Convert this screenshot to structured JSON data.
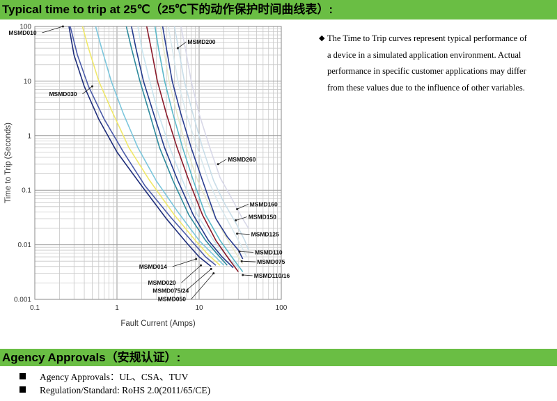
{
  "header": {
    "title": "Typical time to trip at 25℃（25℃下的动作保护时间曲线表）:"
  },
  "note": {
    "bullet": "◆",
    "text": "The Time to Trip curves represent typical performance of a device in a simulated application environment. Actual performance in specific customer applications may differ from these values due to the influence of other variables."
  },
  "agency": {
    "title": "Agency Approvals（安规认证）:",
    "items": [
      "Agency Approvals：UL、CSA、TUV",
      "Regulation/Standard: RoHS 2.0(2011/65/CE)"
    ]
  },
  "chart_data": {
    "type": "line",
    "xlabel": "Fault Current  (Amps)",
    "ylabel": "Time to Trip  (Seconds)",
    "xscale": "log",
    "yscale": "log",
    "xlim": [
      0.1,
      100
    ],
    "ylim": [
      0.001,
      100
    ],
    "grid": true,
    "x_ticks": [
      "0.1",
      "1",
      "10",
      "100"
    ],
    "y_ticks": [
      "100",
      "10",
      "1",
      "0.1",
      "0.01",
      "0.001"
    ],
    "series": [
      {
        "name": "MSMD010",
        "color": "#1f2e7a",
        "label_at": [
          0.22,
          100
        ],
        "points": [
          [
            0.26,
            100
          ],
          [
            0.3,
            30
          ],
          [
            0.4,
            8
          ],
          [
            0.6,
            2
          ],
          [
            1,
            0.5
          ],
          [
            2,
            0.12
          ],
          [
            4,
            0.03
          ],
          [
            7,
            0.011
          ],
          [
            10,
            0.006
          ],
          [
            14,
            0.004
          ]
        ]
      },
      {
        "name": "MSMD014",
        "color": "#4a5aa8",
        "label_at": [
          9.2,
          0.0055
        ],
        "points": [
          [
            0.27,
            100
          ],
          [
            0.33,
            30
          ],
          [
            0.45,
            8
          ],
          [
            0.7,
            2
          ],
          [
            1.2,
            0.5
          ],
          [
            2.2,
            0.12
          ],
          [
            4.5,
            0.032
          ],
          [
            8,
            0.012
          ],
          [
            12,
            0.006
          ],
          [
            16,
            0.0042
          ]
        ]
      },
      {
        "name": "MSMD020",
        "color": "#f0e86a",
        "label_at": [
          10.5,
          0.0042
        ],
        "points": [
          [
            0.38,
            100
          ],
          [
            0.45,
            40
          ],
          [
            0.6,
            10
          ],
          [
            0.9,
            2.5
          ],
          [
            1.4,
            0.6
          ],
          [
            2.5,
            0.15
          ],
          [
            5,
            0.035
          ],
          [
            9,
            0.012
          ],
          [
            13,
            0.0065
          ],
          [
            18,
            0.0042
          ]
        ]
      },
      {
        "name": "MSMD030",
        "color": "#7cc6dc",
        "label_at": [
          0.5,
          8
        ],
        "points": [
          [
            0.55,
            100
          ],
          [
            0.65,
            40
          ],
          [
            0.85,
            10
          ],
          [
            1.2,
            2.5
          ],
          [
            1.8,
            0.6
          ],
          [
            3,
            0.15
          ],
          [
            5.5,
            0.04
          ],
          [
            10,
            0.012
          ],
          [
            15,
            0.0065
          ],
          [
            20,
            0.0042
          ]
        ]
      },
      {
        "name": "MSMD050",
        "color": "#2e8a9c",
        "label_at": [
          15,
          0.003
        ],
        "points": [
          [
            1.3,
            100
          ],
          [
            1.5,
            40
          ],
          [
            1.9,
            10
          ],
          [
            2.5,
            2.5
          ],
          [
            3.3,
            0.6
          ],
          [
            4.8,
            0.15
          ],
          [
            7.5,
            0.035
          ],
          [
            12,
            0.012
          ],
          [
            17,
            0.0065
          ],
          [
            22,
            0.0042
          ]
        ]
      },
      {
        "name": "MSMD075/24",
        "color": "#223a8c",
        "label_at": [
          14,
          0.0036
        ],
        "points": [
          [
            1.5,
            100
          ],
          [
            1.7,
            40
          ],
          [
            2.1,
            10
          ],
          [
            2.8,
            2.5
          ],
          [
            3.8,
            0.6
          ],
          [
            5.5,
            0.15
          ],
          [
            8.5,
            0.035
          ],
          [
            13,
            0.012
          ],
          [
            19,
            0.006
          ],
          [
            26,
            0.0038
          ]
        ]
      },
      {
        "name": "MSMD075",
        "color": "#c8e4ee",
        "label_at": [
          33,
          0.005
        ],
        "points": [
          [
            1.8,
            100
          ],
          [
            2.0,
            40
          ],
          [
            2.5,
            10
          ],
          [
            3.2,
            2.5
          ],
          [
            4.4,
            0.6
          ],
          [
            6.3,
            0.15
          ],
          [
            9.5,
            0.035
          ],
          [
            15,
            0.012
          ],
          [
            22,
            0.006
          ],
          [
            30,
            0.0038
          ]
        ]
      },
      {
        "name": "MSMD110",
        "color": "#8a1a2a",
        "label_at": [
          31,
          0.0075
        ],
        "points": [
          [
            2.3,
            100
          ],
          [
            2.6,
            40
          ],
          [
            3.1,
            10
          ],
          [
            4,
            2.5
          ],
          [
            5.4,
            0.6
          ],
          [
            7.5,
            0.15
          ],
          [
            11,
            0.035
          ],
          [
            16,
            0.012
          ],
          [
            23,
            0.0055
          ],
          [
            30,
            0.0032
          ]
        ]
      },
      {
        "name": "MSMD110/16",
        "color": "#5ab8c8",
        "label_at": [
          34,
          0.0028
        ],
        "points": [
          [
            2.9,
            100
          ],
          [
            3.2,
            40
          ],
          [
            3.8,
            10
          ],
          [
            4.8,
            2.5
          ],
          [
            6.3,
            0.6
          ],
          [
            8.5,
            0.15
          ],
          [
            12,
            0.035
          ],
          [
            18,
            0.012
          ],
          [
            26,
            0.0055
          ],
          [
            34,
            0.0032
          ]
        ]
      },
      {
        "name": "MSMD125",
        "color": "#e8e8c8",
        "label_at": [
          29,
          0.016
        ],
        "points": [
          [
            3.4,
            100
          ],
          [
            3.7,
            40
          ],
          [
            4.3,
            10
          ],
          [
            5.4,
            2.5
          ],
          [
            7,
            0.6
          ],
          [
            9.6,
            0.15
          ],
          [
            14,
            0.045
          ],
          [
            20,
            0.016
          ],
          [
            28,
            0.007
          ],
          [
            34,
            0.0045
          ]
        ]
      },
      {
        "name": "MSMD150",
        "color": "#2a3e90",
        "label_at": [
          28,
          0.028
        ],
        "points": [
          [
            3.6,
            100
          ],
          [
            4,
            40
          ],
          [
            4.7,
            10
          ],
          [
            6,
            2.5
          ],
          [
            8,
            0.6
          ],
          [
            11,
            0.15
          ],
          [
            16,
            0.03
          ],
          [
            22,
            0.014
          ],
          [
            30,
            0.008
          ],
          [
            34,
            0.0055
          ]
        ]
      },
      {
        "name": "MSMD160",
        "color": "#d8e8ee",
        "label_at": [
          29,
          0.045
        ],
        "points": [
          [
            4.2,
            100
          ],
          [
            4.7,
            40
          ],
          [
            5.5,
            10
          ],
          [
            7,
            2.5
          ],
          [
            9.5,
            0.6
          ],
          [
            13,
            0.15
          ],
          [
            18,
            0.05
          ],
          [
            25,
            0.02
          ],
          [
            32,
            0.01
          ],
          [
            38,
            0.006
          ]
        ]
      },
      {
        "name": "MSMD200",
        "color": "#c8dde8",
        "label_at": [
          5.5,
          40
        ],
        "points": [
          [
            5,
            100
          ],
          [
            5.6,
            40
          ],
          [
            6.6,
            10
          ],
          [
            8.4,
            2.5
          ],
          [
            11,
            0.6
          ],
          [
            15,
            0.15
          ],
          [
            20,
            0.06
          ],
          [
            28,
            0.025
          ],
          [
            36,
            0.012
          ],
          [
            40,
            0.008
          ]
        ]
      },
      {
        "name": "MSMD260",
        "color": "#d8d8e8",
        "label_at": [
          17,
          0.3
        ],
        "points": [
          [
            6,
            100
          ],
          [
            6.8,
            40
          ],
          [
            8,
            10
          ],
          [
            10,
            2.5
          ],
          [
            13.5,
            0.6
          ],
          [
            18,
            0.17
          ],
          [
            25,
            0.07
          ],
          [
            33,
            0.032
          ],
          [
            40,
            0.02
          ]
        ]
      }
    ]
  }
}
